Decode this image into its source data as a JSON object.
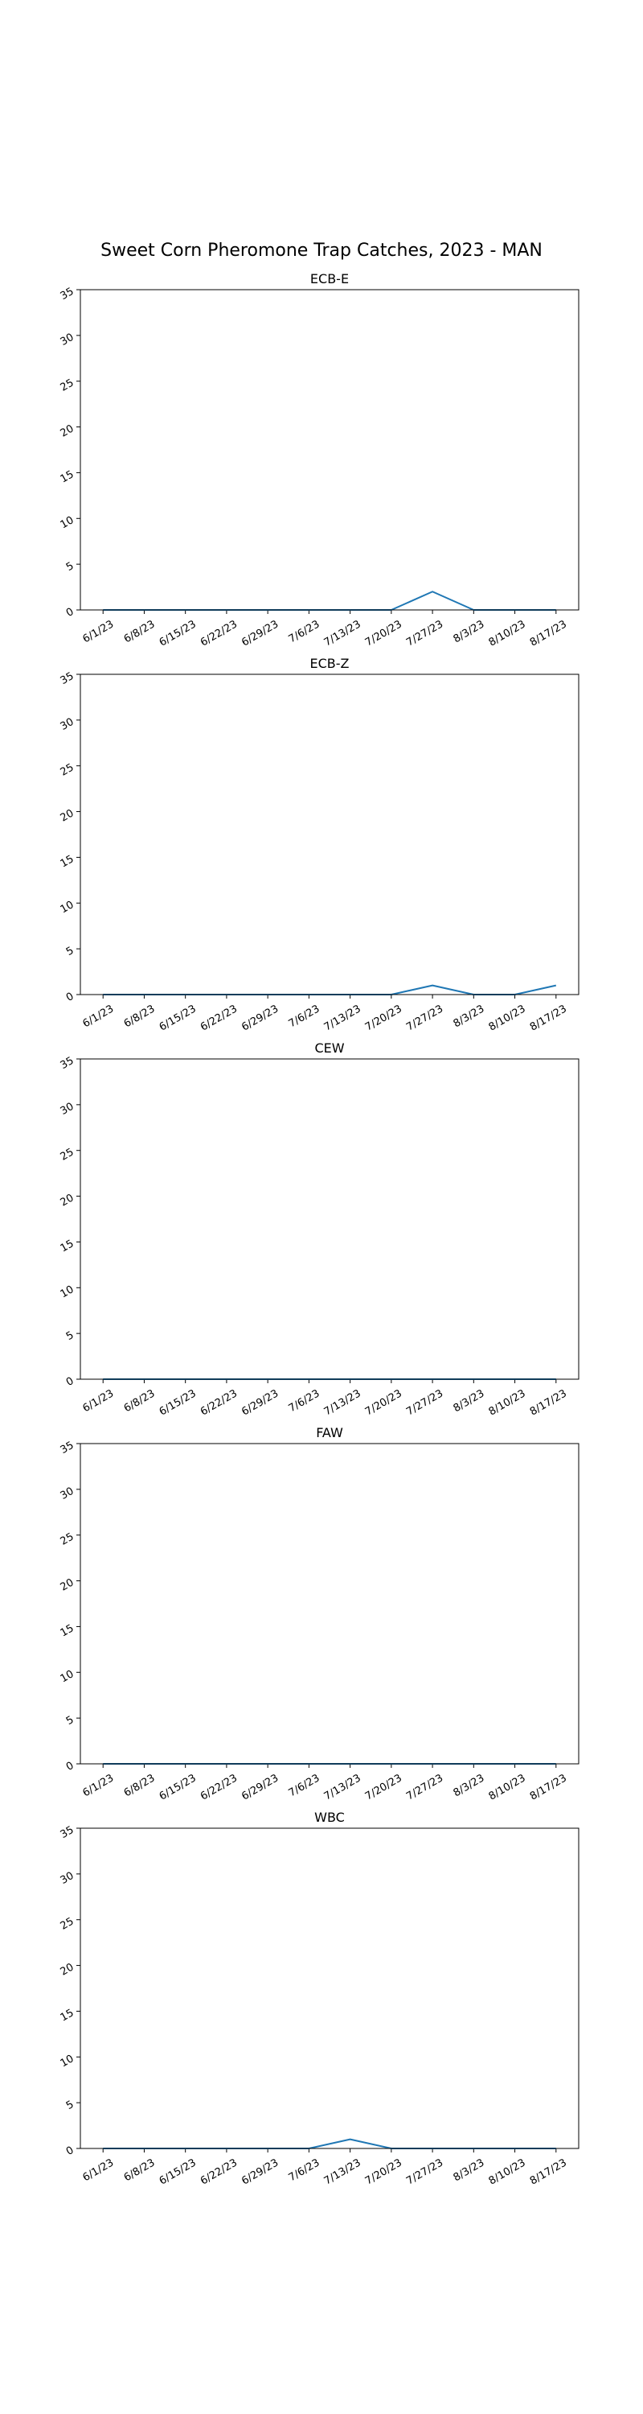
{
  "figure_title": "Sweet Corn Pheromone Trap Catches, 2023 - MAN",
  "colors": {
    "series": "#1f77b4",
    "axes": "#000000"
  },
  "chart_data": [
    {
      "type": "line",
      "title": "ECB-E",
      "categories": [
        "6/1/23",
        "6/8/23",
        "6/15/23",
        "6/22/23",
        "6/29/23",
        "7/6/23",
        "7/13/23",
        "7/20/23",
        "7/27/23",
        "8/3/23",
        "8/10/23",
        "8/17/23"
      ],
      "values": [
        0,
        0,
        0,
        0,
        0,
        0,
        0,
        0,
        2,
        0,
        0,
        0
      ],
      "ylim": [
        0,
        35
      ],
      "yticks": [
        0,
        5,
        10,
        15,
        20,
        25,
        30,
        35
      ],
      "xlabel": "",
      "ylabel": "",
      "grid": false
    },
    {
      "type": "line",
      "title": "ECB-Z",
      "categories": [
        "6/1/23",
        "6/8/23",
        "6/15/23",
        "6/22/23",
        "6/29/23",
        "7/6/23",
        "7/13/23",
        "7/20/23",
        "7/27/23",
        "8/3/23",
        "8/10/23",
        "8/17/23"
      ],
      "values": [
        0,
        0,
        0,
        0,
        0,
        0,
        0,
        0,
        1,
        0,
        0,
        1
      ],
      "ylim": [
        0,
        35
      ],
      "yticks": [
        0,
        5,
        10,
        15,
        20,
        25,
        30,
        35
      ],
      "xlabel": "",
      "ylabel": "",
      "grid": false
    },
    {
      "type": "line",
      "title": "CEW",
      "categories": [
        "6/1/23",
        "6/8/23",
        "6/15/23",
        "6/22/23",
        "6/29/23",
        "7/6/23",
        "7/13/23",
        "7/20/23",
        "7/27/23",
        "8/3/23",
        "8/10/23",
        "8/17/23"
      ],
      "values": [
        0,
        0,
        0,
        0,
        0,
        0,
        0,
        0,
        0,
        0,
        0,
        0
      ],
      "ylim": [
        0,
        35
      ],
      "yticks": [
        0,
        5,
        10,
        15,
        20,
        25,
        30,
        35
      ],
      "xlabel": "",
      "ylabel": "",
      "grid": false
    },
    {
      "type": "line",
      "title": "FAW",
      "categories": [
        "6/1/23",
        "6/8/23",
        "6/15/23",
        "6/22/23",
        "6/29/23",
        "7/6/23",
        "7/13/23",
        "7/20/23",
        "7/27/23",
        "8/3/23",
        "8/10/23",
        "8/17/23"
      ],
      "values": [
        0,
        0,
        0,
        0,
        0,
        0,
        0,
        0,
        0,
        0,
        0,
        0
      ],
      "ylim": [
        0,
        35
      ],
      "yticks": [
        0,
        5,
        10,
        15,
        20,
        25,
        30,
        35
      ],
      "xlabel": "",
      "ylabel": "",
      "grid": false
    },
    {
      "type": "line",
      "title": "WBC",
      "categories": [
        "6/1/23",
        "6/8/23",
        "6/15/23",
        "6/22/23",
        "6/29/23",
        "7/6/23",
        "7/13/23",
        "7/20/23",
        "7/27/23",
        "8/3/23",
        "8/10/23",
        "8/17/23"
      ],
      "values": [
        0,
        0,
        0,
        0,
        0,
        0,
        1,
        0,
        0,
        0,
        0,
        0
      ],
      "ylim": [
        0,
        35
      ],
      "yticks": [
        0,
        5,
        10,
        15,
        20,
        25,
        30,
        35
      ],
      "xlabel": "",
      "ylabel": "",
      "grid": false
    }
  ]
}
